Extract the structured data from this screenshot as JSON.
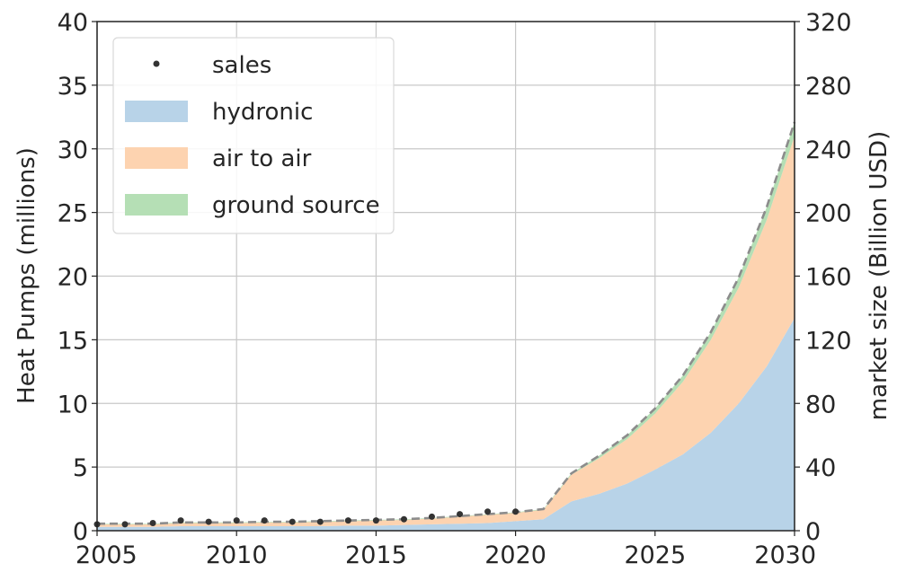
{
  "chart_data": {
    "type": "area",
    "x_ticks": [
      2005,
      2010,
      2015,
      2020,
      2025,
      2030
    ],
    "xlim": [
      2005,
      2030
    ],
    "ylim": [
      0,
      40
    ],
    "y_ticks": [
      0,
      5,
      10,
      15,
      20,
      25,
      30,
      35,
      40
    ],
    "ylabel": "Heat Pumps (millions)",
    "y2lim": [
      0,
      320
    ],
    "y2_ticks": [
      0,
      40,
      80,
      120,
      160,
      200,
      240,
      280,
      320
    ],
    "y2label": "market size (Billion USD)",
    "grid": true,
    "legend_position": "top-left",
    "x": [
      2005,
      2006,
      2007,
      2008,
      2009,
      2010,
      2011,
      2012,
      2013,
      2014,
      2015,
      2016,
      2017,
      2018,
      2019,
      2020,
      2021,
      2022,
      2023,
      2024,
      2025,
      2026,
      2027,
      2028,
      2029,
      2030
    ],
    "series": [
      {
        "name": "hydronic",
        "color": "#b8d3e8",
        "values": [
          0.3,
          0.3,
          0.3,
          0.35,
          0.35,
          0.35,
          0.35,
          0.35,
          0.35,
          0.4,
          0.4,
          0.45,
          0.5,
          0.55,
          0.6,
          0.75,
          0.9,
          2.3,
          2.9,
          3.7,
          4.8,
          6.0,
          7.7,
          10.0,
          12.9,
          16.7
        ]
      },
      {
        "name": "air to air",
        "color": "#fdd3b0",
        "values": [
          0.2,
          0.2,
          0.2,
          0.25,
          0.25,
          0.25,
          0.3,
          0.3,
          0.35,
          0.35,
          0.4,
          0.4,
          0.45,
          0.55,
          0.65,
          0.65,
          0.75,
          2.1,
          2.8,
          3.5,
          4.4,
          5.7,
          7.3,
          9.1,
          11.5,
          14.3
        ]
      },
      {
        "name": "ground source",
        "color": "#b5dfb5",
        "values": [
          0.05,
          0.05,
          0.05,
          0.05,
          0.05,
          0.05,
          0.05,
          0.05,
          0.05,
          0.05,
          0.05,
          0.05,
          0.05,
          0.05,
          0.05,
          0.05,
          0.05,
          0.1,
          0.2,
          0.3,
          0.4,
          0.5,
          0.6,
          0.8,
          1.0,
          1.1
        ]
      }
    ],
    "sales": {
      "name": "sales",
      "color": "#333333",
      "x": [
        2005,
        2006,
        2007,
        2008,
        2009,
        2010,
        2011,
        2012,
        2013,
        2014,
        2015,
        2016,
        2017,
        2018,
        2019,
        2020
      ],
      "values": [
        0.5,
        0.5,
        0.6,
        0.8,
        0.7,
        0.8,
        0.8,
        0.7,
        0.7,
        0.8,
        0.8,
        0.9,
        1.1,
        1.3,
        1.5,
        1.5
      ]
    },
    "market_size": {
      "color": "#8c8c8c",
      "style": "dashed"
    }
  }
}
